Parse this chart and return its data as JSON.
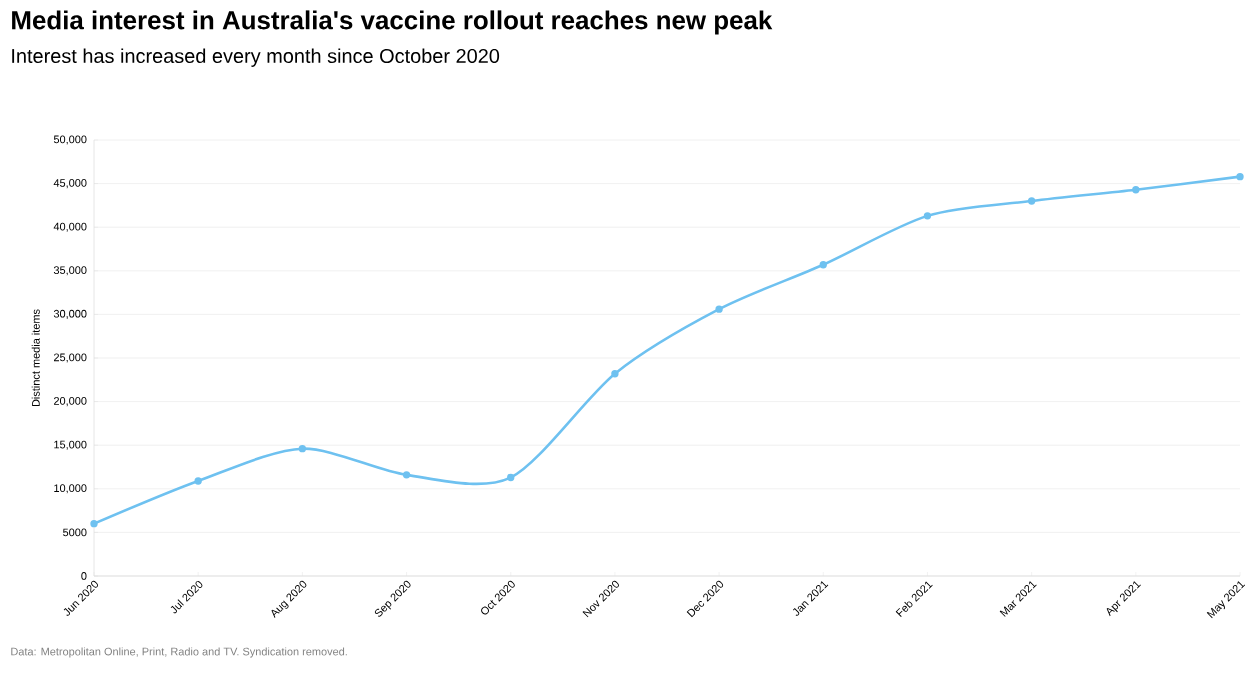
{
  "chart_data": {
    "type": "line",
    "title": "Media interest in Australia's vaccine rollout reaches new peak",
    "subtitle": "Interest has increased every month since October 2020",
    "ylabel": "Distinct media items",
    "categories": [
      "Jun 2020",
      "Jul 2020",
      "Aug 2020",
      "Sep 2020",
      "Oct 2020",
      "Nov 2020",
      "Dec 2020",
      "Jan 2021",
      "Feb 2021",
      "Mar 2021",
      "Apr 2021",
      "May 2021"
    ],
    "values": [
      6000,
      10900,
      14600,
      11600,
      11300,
      23200,
      30600,
      35700,
      41300,
      43000,
      44300,
      45800
    ],
    "color": "#6ec1f0",
    "ylim": [
      0,
      50000
    ],
    "yticks": [
      0,
      5000,
      {
        "value": 10000,
        "label": "10,000"
      },
      {
        "value": 15000,
        "label": "15,000"
      },
      {
        "value": 20000,
        "label": "20,000"
      },
      {
        "value": 25000,
        "label": "25,000"
      },
      {
        "value": 30000,
        "label": "30,000"
      },
      {
        "value": 35000,
        "label": "35,000"
      },
      {
        "value": 40000,
        "label": "40,000"
      },
      {
        "value": 45000,
        "label": "45,000"
      },
      {
        "value": 50000,
        "label": "50,000"
      }
    ],
    "grid": "y",
    "marker": "circle",
    "line_style": "solid",
    "annotations": [
      "Data: Metropolitan Online, Print, Radio and TV. Syndication removed."
    ]
  }
}
